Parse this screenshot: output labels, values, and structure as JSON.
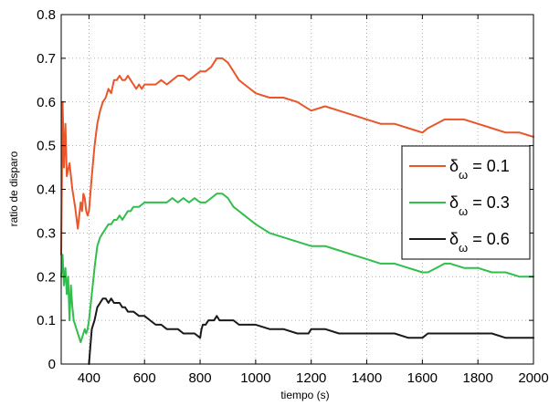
{
  "chart_data": {
    "type": "line",
    "title": "",
    "xlabel": "tiempo (s)",
    "ylabel": "ratio de disparo",
    "xlim": [
      300,
      2000
    ],
    "ylim": [
      0,
      0.8
    ],
    "xticks": [
      400,
      600,
      800,
      1000,
      1200,
      1400,
      1600,
      1800,
      2000
    ],
    "xtick_labels": [
      "400",
      "600",
      "800",
      "1000",
      "1200",
      "1400",
      "1600",
      "1800",
      "2000"
    ],
    "yticks": [
      0,
      0.1,
      0.2,
      0.3,
      0.4,
      0.5,
      0.6,
      0.7,
      0.8
    ],
    "ytick_labels": [
      "0",
      "0.1",
      "0.2",
      "0.3",
      "0.4",
      "0.5",
      "0.6",
      "0.7",
      "0.8"
    ],
    "grid": true,
    "legend_position": "right",
    "series": [
      {
        "name": "δω = 0.1",
        "legend_main": "δ",
        "legend_sub": "ω",
        "legend_value": " = 0.1",
        "color": "#e8562a",
        "x": [
          300,
          305,
          310,
          315,
          320,
          330,
          340,
          350,
          360,
          370,
          375,
          380,
          385,
          390,
          395,
          400,
          410,
          420,
          430,
          440,
          450,
          460,
          470,
          480,
          490,
          500,
          510,
          520,
          530,
          540,
          550,
          560,
          570,
          580,
          590,
          600,
          620,
          640,
          660,
          680,
          700,
          720,
          740,
          760,
          780,
          800,
          820,
          840,
          860,
          880,
          900,
          920,
          940,
          960,
          980,
          1000,
          1050,
          1100,
          1150,
          1200,
          1250,
          1300,
          1350,
          1400,
          1450,
          1500,
          1550,
          1600,
          1620,
          1650,
          1680,
          1700,
          1750,
          1800,
          1850,
          1900,
          1950,
          2000
        ],
        "y": [
          0.25,
          0.6,
          0.45,
          0.55,
          0.43,
          0.46,
          0.4,
          0.36,
          0.31,
          0.37,
          0.35,
          0.39,
          0.38,
          0.35,
          0.34,
          0.35,
          0.43,
          0.5,
          0.55,
          0.58,
          0.6,
          0.61,
          0.63,
          0.62,
          0.65,
          0.65,
          0.66,
          0.65,
          0.65,
          0.66,
          0.65,
          0.64,
          0.63,
          0.64,
          0.63,
          0.64,
          0.64,
          0.64,
          0.65,
          0.64,
          0.65,
          0.66,
          0.66,
          0.65,
          0.66,
          0.67,
          0.67,
          0.68,
          0.7,
          0.7,
          0.69,
          0.67,
          0.65,
          0.64,
          0.63,
          0.62,
          0.61,
          0.61,
          0.6,
          0.58,
          0.59,
          0.58,
          0.57,
          0.56,
          0.55,
          0.55,
          0.54,
          0.53,
          0.54,
          0.55,
          0.56,
          0.56,
          0.56,
          0.55,
          0.54,
          0.53,
          0.53,
          0.52
        ]
      },
      {
        "name": "δω = 0.3",
        "legend_main": "δ",
        "legend_sub": "ω",
        "legend_value": " = 0.3",
        "color": "#2fbf4a",
        "x": [
          300,
          305,
          310,
          315,
          320,
          325,
          330,
          335,
          340,
          345,
          350,
          355,
          360,
          365,
          370,
          375,
          380,
          385,
          390,
          395,
          400,
          410,
          420,
          430,
          440,
          450,
          460,
          470,
          480,
          490,
          500,
          510,
          520,
          530,
          540,
          550,
          560,
          580,
          600,
          620,
          640,
          660,
          680,
          700,
          720,
          740,
          760,
          780,
          800,
          820,
          840,
          860,
          880,
          900,
          920,
          940,
          960,
          980,
          1000,
          1050,
          1100,
          1150,
          1200,
          1250,
          1300,
          1350,
          1400,
          1450,
          1500,
          1550,
          1600,
          1620,
          1650,
          1680,
          1700,
          1750,
          1800,
          1850,
          1900,
          1950,
          2000
        ],
        "y": [
          0.2,
          0.25,
          0.18,
          0.22,
          0.16,
          0.2,
          0.1,
          0.18,
          0.13,
          0.1,
          0.09,
          0.08,
          0.07,
          0.06,
          0.05,
          0.06,
          0.07,
          0.08,
          0.07,
          0.08,
          0.1,
          0.16,
          0.22,
          0.27,
          0.29,
          0.3,
          0.31,
          0.32,
          0.32,
          0.33,
          0.33,
          0.34,
          0.33,
          0.34,
          0.35,
          0.35,
          0.36,
          0.36,
          0.37,
          0.37,
          0.37,
          0.37,
          0.37,
          0.38,
          0.37,
          0.38,
          0.37,
          0.38,
          0.37,
          0.37,
          0.38,
          0.39,
          0.39,
          0.38,
          0.36,
          0.35,
          0.34,
          0.33,
          0.32,
          0.3,
          0.29,
          0.28,
          0.27,
          0.27,
          0.26,
          0.25,
          0.24,
          0.23,
          0.23,
          0.22,
          0.21,
          0.21,
          0.22,
          0.23,
          0.23,
          0.22,
          0.22,
          0.21,
          0.21,
          0.2,
          0.2
        ]
      },
      {
        "name": "δω = 0.6",
        "legend_main": "δ",
        "legend_sub": "ω",
        "legend_value": " = 0.6",
        "color": "#1a1a1a",
        "x": [
          400,
          405,
          410,
          420,
          430,
          440,
          450,
          460,
          470,
          480,
          490,
          500,
          510,
          520,
          530,
          540,
          560,
          580,
          600,
          620,
          640,
          660,
          680,
          700,
          720,
          740,
          760,
          780,
          800,
          805,
          810,
          820,
          830,
          840,
          850,
          860,
          870,
          880,
          900,
          920,
          940,
          960,
          980,
          1000,
          1050,
          1100,
          1150,
          1190,
          1200,
          1250,
          1300,
          1350,
          1400,
          1450,
          1500,
          1550,
          1600,
          1620,
          1650,
          1680,
          1700,
          1750,
          1800,
          1850,
          1900,
          1950,
          2000
        ],
        "y": [
          0,
          0.04,
          0.08,
          0.1,
          0.13,
          0.14,
          0.15,
          0.15,
          0.14,
          0.15,
          0.14,
          0.14,
          0.14,
          0.13,
          0.13,
          0.12,
          0.12,
          0.11,
          0.11,
          0.1,
          0.09,
          0.09,
          0.08,
          0.08,
          0.08,
          0.07,
          0.07,
          0.07,
          0.06,
          0.08,
          0.09,
          0.09,
          0.1,
          0.1,
          0.1,
          0.11,
          0.1,
          0.1,
          0.1,
          0.1,
          0.09,
          0.09,
          0.09,
          0.09,
          0.08,
          0.08,
          0.07,
          0.07,
          0.08,
          0.08,
          0.07,
          0.07,
          0.07,
          0.07,
          0.07,
          0.06,
          0.06,
          0.07,
          0.07,
          0.07,
          0.07,
          0.07,
          0.07,
          0.07,
          0.06,
          0.06,
          0.06
        ]
      }
    ]
  }
}
